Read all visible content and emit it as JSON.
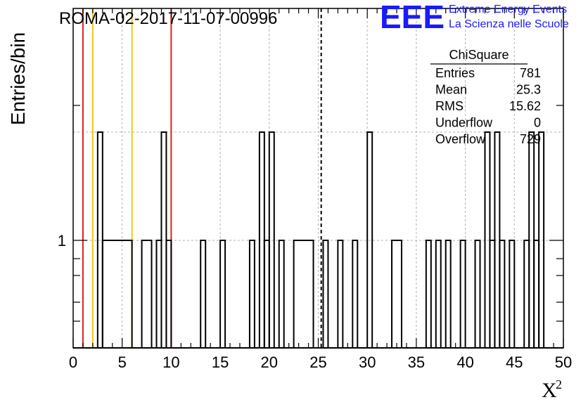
{
  "chart_data": {
    "type": "histogram",
    "title": "ROMA-02-2017-11-07-00996",
    "xlabel": "X",
    "xlabel_superscript": "2",
    "ylabel": "Entries/bin",
    "xlim": [
      0,
      50
    ],
    "x_ticks": [
      0,
      5,
      10,
      15,
      20,
      25,
      30,
      35,
      40,
      45,
      50
    ],
    "y_scale": "log",
    "y_ticks": [
      1
    ],
    "grid": true,
    "bin_width": 0.5,
    "bins": [
      {
        "x0": 0.0,
        "x1": 0.5,
        "count": 0
      },
      {
        "x0": 2.5,
        "x1": 3.0,
        "count": 2
      },
      {
        "x0": 3.0,
        "x1": 6.0,
        "count": 1
      },
      {
        "x0": 7.0,
        "x1": 8.0,
        "count": 1
      },
      {
        "x0": 8.5,
        "x1": 9.0,
        "count": 1
      },
      {
        "x0": 9.0,
        "x1": 9.5,
        "count": 2
      },
      {
        "x0": 9.5,
        "x1": 10.0,
        "count": 1
      },
      {
        "x0": 13.0,
        "x1": 13.5,
        "count": 1
      },
      {
        "x0": 15.0,
        "x1": 15.5,
        "count": 1
      },
      {
        "x0": 18.0,
        "x1": 18.5,
        "count": 1
      },
      {
        "x0": 19.0,
        "x1": 19.5,
        "count": 2
      },
      {
        "x0": 19.5,
        "x1": 20.0,
        "count": 1
      },
      {
        "x0": 20.0,
        "x1": 20.5,
        "count": 2
      },
      {
        "x0": 21.0,
        "x1": 21.5,
        "count": 1
      },
      {
        "x0": 22.5,
        "x1": 24.5,
        "count": 1
      },
      {
        "x0": 25.5,
        "x1": 26.0,
        "count": 1
      },
      {
        "x0": 27.0,
        "x1": 27.5,
        "count": 1
      },
      {
        "x0": 28.5,
        "x1": 29.0,
        "count": 1
      },
      {
        "x0": 30.0,
        "x1": 30.5,
        "count": 2
      },
      {
        "x0": 32.5,
        "x1": 33.5,
        "count": 1
      },
      {
        "x0": 36.0,
        "x1": 36.5,
        "count": 1
      },
      {
        "x0": 37.0,
        "x1": 37.5,
        "count": 1
      },
      {
        "x0": 38.0,
        "x1": 38.5,
        "count": 1
      },
      {
        "x0": 39.5,
        "x1": 40.0,
        "count": 1
      },
      {
        "x0": 41.0,
        "x1": 41.5,
        "count": 1
      },
      {
        "x0": 42.0,
        "x1": 42.5,
        "count": 2
      },
      {
        "x0": 42.5,
        "x1": 43.0,
        "count": 1
      },
      {
        "x0": 43.0,
        "x1": 43.5,
        "count": 2
      },
      {
        "x0": 43.5,
        "x1": 44.0,
        "count": 1
      },
      {
        "x0": 44.5,
        "x1": 45.0,
        "count": 1
      },
      {
        "x0": 46.0,
        "x1": 46.5,
        "count": 1
      },
      {
        "x0": 46.5,
        "x1": 47.0,
        "count": 2
      },
      {
        "x0": 47.0,
        "x1": 47.5,
        "count": 1
      },
      {
        "x0": 47.5,
        "x1": 48.0,
        "count": 2
      }
    ],
    "reference_lines": [
      {
        "x": 1,
        "color": "#e02020",
        "style": "solid"
      },
      {
        "x": 2,
        "color": "#f5c518",
        "style": "solid"
      },
      {
        "x": 6,
        "color": "#f5c518",
        "style": "solid"
      },
      {
        "x": 10,
        "color": "#e02020",
        "style": "solid"
      },
      {
        "x": 25.3,
        "color": "#000000",
        "style": "dashed"
      }
    ],
    "stats_box": {
      "title": "ChiSquare",
      "rows": [
        {
          "label": "Entries",
          "value": "781"
        },
        {
          "label": "Mean",
          "value": "25.3"
        },
        {
          "label": "RMS",
          "value": "15.62"
        },
        {
          "label": "Underflow",
          "value": "0"
        },
        {
          "label": "Overflow",
          "value": "729"
        }
      ]
    }
  },
  "logo": {
    "mark": "EEE",
    "line1": "Extreme Energy Events",
    "line2": "La Scienza nelle Scuole",
    "color": "#1a1aff"
  }
}
